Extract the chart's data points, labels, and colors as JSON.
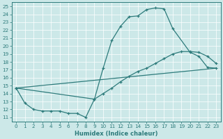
{
  "xlabel": "Humidex (Indice chaleur)",
  "bg_color": "#cce8e8",
  "line_color": "#2d7b7b",
  "xlim": [
    -0.5,
    23.5
  ],
  "ylim": [
    10.5,
    25.5
  ],
  "xticks": [
    0,
    1,
    2,
    3,
    4,
    5,
    6,
    7,
    8,
    9,
    10,
    11,
    12,
    13,
    14,
    15,
    16,
    17,
    18,
    19,
    20,
    21,
    22,
    23
  ],
  "yticks": [
    11,
    12,
    13,
    14,
    15,
    16,
    17,
    18,
    19,
    20,
    21,
    22,
    23,
    24,
    25
  ],
  "curve1_x": [
    0,
    1,
    2,
    3,
    4,
    5,
    6,
    7,
    8,
    9,
    10,
    11,
    12,
    13,
    14,
    15,
    16,
    17,
    18,
    20,
    21,
    22,
    23
  ],
  "curve1_y": [
    14.7,
    12.8,
    12.0,
    11.8,
    11.8,
    11.8,
    11.5,
    11.5,
    11.0,
    13.3,
    17.2,
    20.7,
    22.5,
    23.7,
    23.8,
    24.6,
    24.8,
    24.7,
    22.2,
    19.2,
    18.7,
    17.3,
    17.2
  ],
  "curve2_x": [
    0,
    9,
    10,
    11,
    12,
    13,
    14,
    15,
    16,
    17,
    18,
    19,
    20,
    21,
    22,
    23
  ],
  "curve2_y": [
    14.7,
    13.3,
    14.0,
    14.7,
    15.5,
    16.2,
    16.8,
    17.2,
    17.8,
    18.4,
    19.0,
    19.3,
    19.3,
    19.2,
    18.7,
    17.8
  ],
  "curve3_x": [
    0,
    23
  ],
  "curve3_y": [
    14.7,
    17.2
  ]
}
